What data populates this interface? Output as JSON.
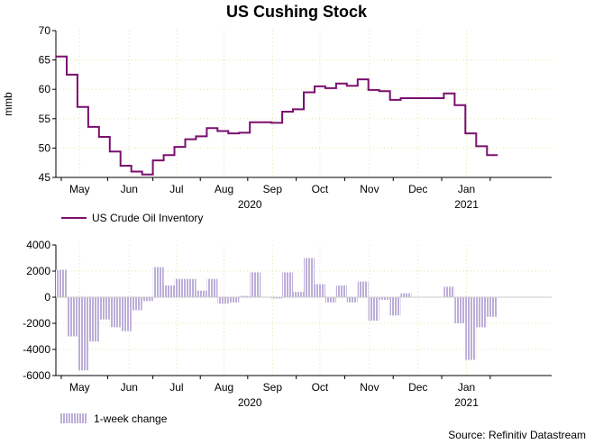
{
  "title": "US Cushing Stock",
  "source": "Source: Refinitiv Datastream",
  "colors": {
    "line": "#7a0f6e",
    "bar": "#a08cc8",
    "grid": "#dfe6a8",
    "axis": "#000000"
  },
  "chart_data": [
    {
      "type": "line",
      "title": "US Cushing Stock",
      "ylabel": "mmb",
      "xlabel": "",
      "ylim": [
        45,
        70
      ],
      "yticks": [
        45,
        50,
        55,
        60,
        65,
        70
      ],
      "xlim": [
        0,
        46
      ],
      "months": [
        {
          "label": "May",
          "x": 2.2
        },
        {
          "label": "Jun",
          "x": 6.8
        },
        {
          "label": "Jul",
          "x": 11.2
        },
        {
          "label": "Aug",
          "x": 15.6
        },
        {
          "label": "Sep",
          "x": 20.1
        },
        {
          "label": "Oct",
          "x": 24.5
        },
        {
          "label": "Nov",
          "x": 29.1
        },
        {
          "label": "Dec",
          "x": 33.6
        },
        {
          "label": "Jan",
          "x": 38.1
        }
      ],
      "years": [
        {
          "label": "2020",
          "x": 18.0
        },
        {
          "label": "2021",
          "x": 38.1
        }
      ],
      "series": [
        {
          "name": "US Crude Oil Inventory",
          "values": [
            65.6,
            62.5,
            57.0,
            53.6,
            51.9,
            49.4,
            47.0,
            46.0,
            45.5,
            47.9,
            48.8,
            50.2,
            51.5,
            52.0,
            53.4,
            52.9,
            52.5,
            52.6,
            54.4,
            54.4,
            54.3,
            56.2,
            56.6,
            59.5,
            60.5,
            60.2,
            61.0,
            60.6,
            61.7,
            59.9,
            59.7,
            58.2,
            58.5,
            58.5,
            58.5,
            58.5,
            59.3,
            57.3,
            52.5,
            50.3,
            48.8
          ]
        }
      ]
    },
    {
      "type": "bar",
      "title": "",
      "ylabel": "",
      "xlabel": "",
      "ylim": [
        -6000,
        4000
      ],
      "yticks": [
        -6000,
        -4000,
        -2000,
        0,
        2000,
        4000
      ],
      "xlim": [
        0,
        46
      ],
      "months": [
        {
          "label": "May",
          "x": 2.2
        },
        {
          "label": "Jun",
          "x": 6.8
        },
        {
          "label": "Jul",
          "x": 11.2
        },
        {
          "label": "Aug",
          "x": 15.6
        },
        {
          "label": "Sep",
          "x": 20.1
        },
        {
          "label": "Oct",
          "x": 24.5
        },
        {
          "label": "Nov",
          "x": 29.1
        },
        {
          "label": "Dec",
          "x": 33.6
        },
        {
          "label": "Jan",
          "x": 38.1
        }
      ],
      "years": [
        {
          "label": "2020",
          "x": 18.0
        },
        {
          "label": "2021",
          "x": 38.1
        }
      ],
      "series": [
        {
          "name": "1-week change",
          "values": [
            2100,
            -3000,
            -5600,
            -3400,
            -1700,
            -2300,
            -2600,
            -1000,
            -300,
            2300,
            900,
            1400,
            1400,
            500,
            1400,
            -500,
            -400,
            100,
            1900,
            0,
            -100,
            1900,
            400,
            3000,
            1000,
            -400,
            900,
            -400,
            1200,
            -1800,
            -200,
            -1400,
            300,
            0,
            0,
            0,
            800,
            -2000,
            -4800,
            -2300,
            -1500
          ]
        }
      ]
    }
  ]
}
